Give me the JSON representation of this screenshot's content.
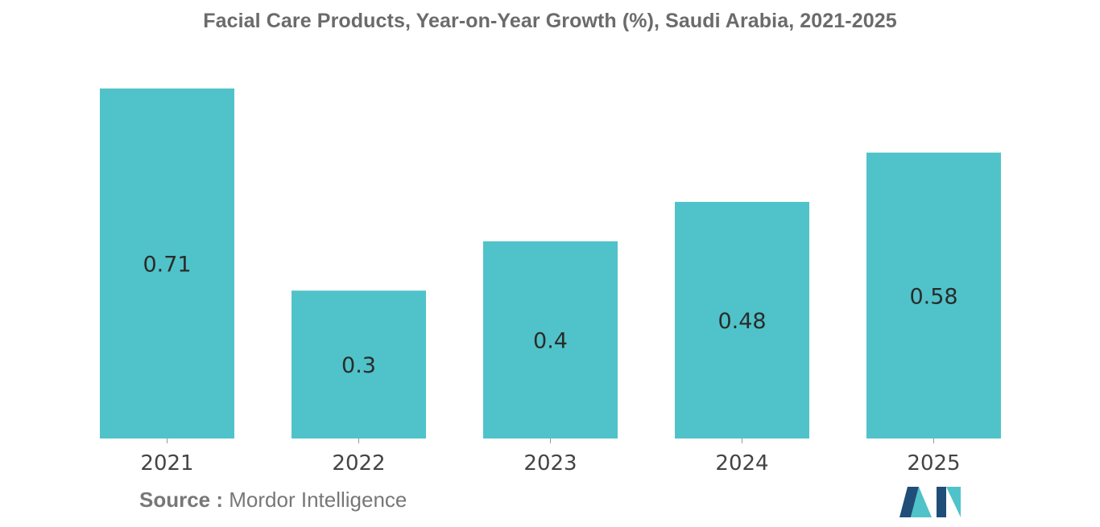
{
  "title": "Facial Care Products, Year-on-Year Growth (%), Saudi Arabia, 2021-2025",
  "source": {
    "label": "Source :",
    "value": "Mordor Intelligence"
  },
  "colors": {
    "bar": "#4fc3c9",
    "logo_dark": "#1f4e79",
    "logo_light": "#4fc3c9"
  },
  "chart_data": {
    "type": "bar",
    "title": "Facial Care Products, Year-on-Year Growth (%), Saudi Arabia, 2021-2025",
    "categories": [
      "2021",
      "2022",
      "2023",
      "2024",
      "2025"
    ],
    "values": [
      0.71,
      0.3,
      0.4,
      0.48,
      0.58
    ],
    "data_labels": [
      "0.71",
      "0.3",
      "0.4",
      "0.48",
      "0.58"
    ],
    "xlabel": "",
    "ylabel": "",
    "ylim": [
      0,
      0.71
    ],
    "grid": false,
    "legend": "none"
  }
}
